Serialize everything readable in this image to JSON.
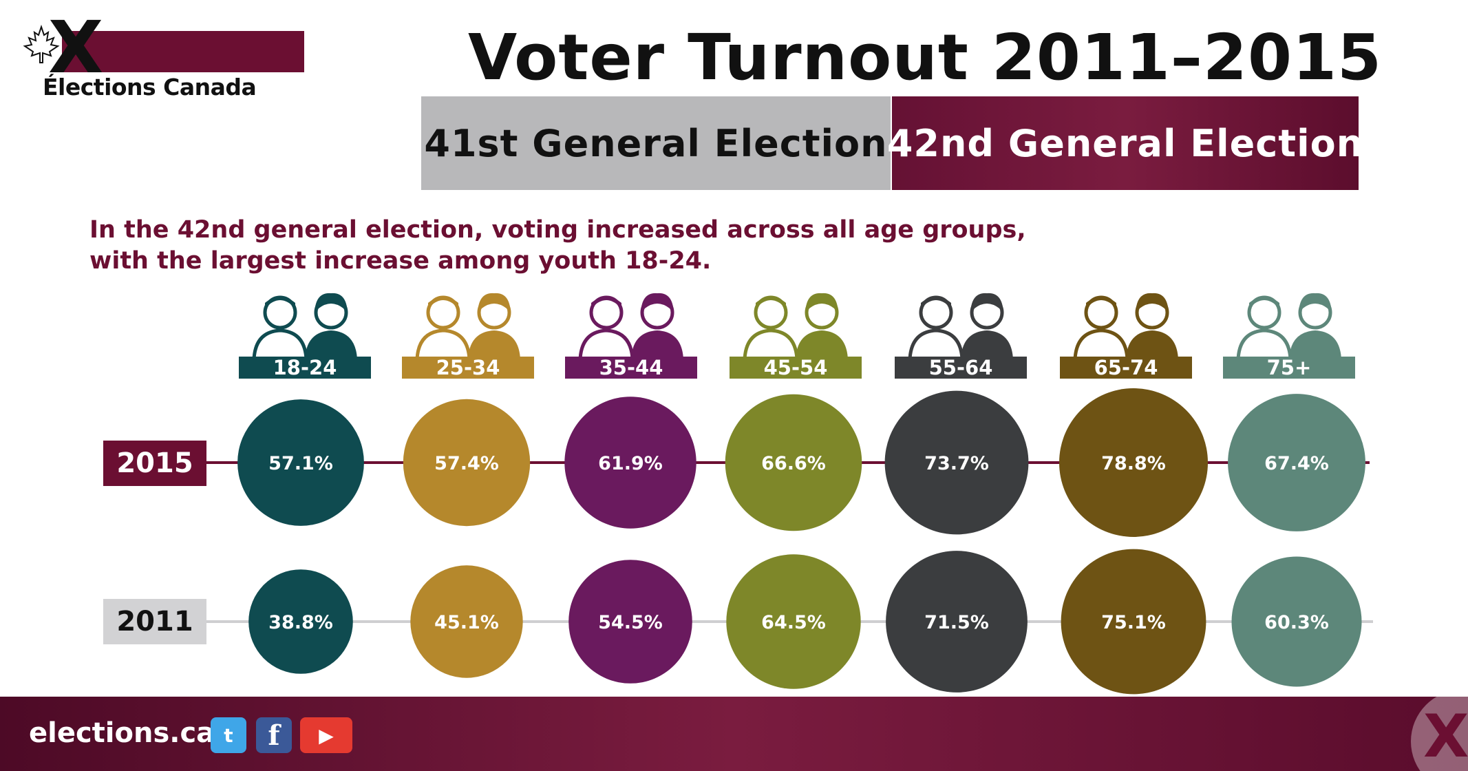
{
  "logo": {
    "mark": "X",
    "text": "Élections Canada",
    "icon": "maple-leaf-icon"
  },
  "title": "Voter Turnout 2011–2015",
  "tabs": [
    {
      "label": "41st General Election"
    },
    {
      "label": "42nd General Election"
    }
  ],
  "subtitle": {
    "line1": "In the 42nd general election, voting increased across all age groups,",
    "line2": "with the largest increase among youth 18-24."
  },
  "years": {
    "y2015": "2015",
    "y2011": "2011"
  },
  "colors": {
    "18-24": "#0f4b50",
    "25-34": "#b5882c",
    "35-44": "#6a1a5e",
    "45-54": "#7e8729",
    "55-64": "#3b3d3f",
    "65-74": "#6e5314",
    "75+": "#5d877a",
    "line2015": "#6b0f32",
    "line2011": "#cfcfd1"
  },
  "chart_data": {
    "type": "scatter",
    "title": "Voter Turnout 2011–2015",
    "categories": [
      "18-24",
      "25-34",
      "35-44",
      "45-54",
      "55-64",
      "65-74",
      "75+"
    ],
    "series": [
      {
        "name": "2015",
        "values": [
          57.1,
          57.4,
          61.9,
          66.6,
          73.7,
          78.8,
          67.4
        ],
        "labels": [
          "57.1%",
          "57.4%",
          "61.9%",
          "66.6%",
          "73.7%",
          "78.8%",
          "67.4%"
        ]
      },
      {
        "name": "2011",
        "values": [
          38.8,
          45.1,
          54.5,
          64.5,
          71.5,
          75.1,
          60.3
        ],
        "labels": [
          "38.8%",
          "45.1%",
          "54.5%",
          "64.5%",
          "71.5%",
          "75.1%",
          "60.3%"
        ]
      }
    ],
    "encoding": "bubble area proportional to turnout percentage"
  },
  "footer": {
    "site": "elections.ca",
    "social": [
      {
        "icon": "twitter-icon",
        "glyph": "t"
      },
      {
        "icon": "facebook-icon",
        "glyph": "f"
      },
      {
        "icon": "youtube-icon",
        "glyph": "▶"
      }
    ],
    "mark": "X"
  }
}
